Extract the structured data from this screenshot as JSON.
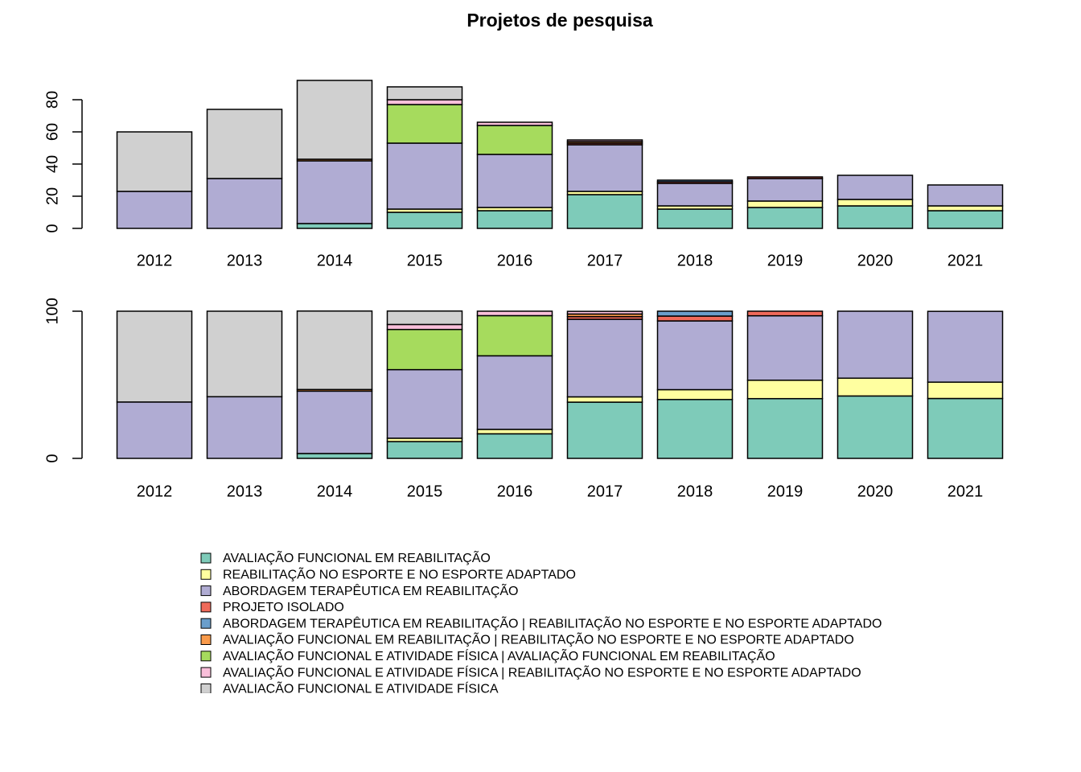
{
  "title": "Projetos de pesquisa",
  "chart_data": [
    {
      "type": "bar",
      "stacked": true,
      "categories": [
        "2012",
        "2013",
        "2014",
        "2015",
        "2016",
        "2017",
        "2018",
        "2019",
        "2020",
        "2021"
      ],
      "ylim": [
        0,
        96
      ],
      "yticks": [
        0,
        20,
        40,
        60,
        80
      ],
      "series": [
        {
          "name": "AVALIAÇÃO FUNCIONAL EM REABILITAÇÃO",
          "color": "#7ecbb9",
          "values": [
            0,
            0,
            3,
            10,
            11,
            21,
            12,
            13,
            14,
            11
          ]
        },
        {
          "name": "REABILITAÇÃO NO ESPORTE E NO ESPORTE ADAPTADO",
          "color": "#ffffa0",
          "values": [
            0,
            0,
            0,
            2,
            2,
            2,
            2,
            4,
            4,
            3
          ]
        },
        {
          "name": "ABORDAGEM TERAPÊUTICA EM REABILITAÇÃO",
          "color": "#b0acd3",
          "values": [
            23,
            31,
            39,
            41,
            33,
            29,
            14,
            14,
            15,
            13
          ]
        },
        {
          "name": "PROJETO ISOLADO",
          "color": "#ef6a5a",
          "values": [
            0,
            0,
            0,
            0,
            0,
            1,
            1,
            1,
            0,
            0
          ]
        },
        {
          "name": "ABORDAGEM TERAPÊUTICA EM REABILITAÇÃO | REABILITAÇÃO NO ESPORTE E NO ESPORTE ADAPTADO",
          "color": "#6a9ecb",
          "values": [
            0,
            0,
            0,
            0,
            0,
            0,
            1,
            0,
            0,
            0
          ]
        },
        {
          "name": "AVALIAÇÃO FUNCIONAL EM REABILITAÇÃO | REABILITAÇÃO NO ESPORTE E NO ESPORTE ADAPTADO",
          "color": "#f99a4a",
          "values": [
            0,
            0,
            1,
            0,
            0,
            1,
            0,
            0,
            0,
            0
          ]
        },
        {
          "name": "AVALIAÇÃO FUNCIONAL E ATIVIDADE FÍSICA | AVALIAÇÃO FUNCIONAL EM REABILITAÇÃO",
          "color": "#a6db5d",
          "values": [
            0,
            0,
            0,
            24,
            18,
            0,
            0,
            0,
            0,
            0
          ]
        },
        {
          "name": "AVALIAÇÃO FUNCIONAL E ATIVIDADE FÍSICA | REABILITAÇÃO NO ESPORTE E NO ESPORTE ADAPTADO",
          "color": "#f9bfda",
          "values": [
            0,
            0,
            0,
            3,
            2,
            1,
            0,
            0,
            0,
            0
          ]
        },
        {
          "name": "AVALIAÇÃO FUNCIONAL E ATIVIDADE FÍSICA",
          "color": "#d0d0d0",
          "values": [
            37,
            43,
            49,
            8,
            0,
            0,
            0,
            0,
            0,
            0
          ]
        }
      ]
    },
    {
      "type": "bar",
      "stacked": true,
      "categories": [
        "2012",
        "2013",
        "2014",
        "2015",
        "2016",
        "2017",
        "2018",
        "2019",
        "2020",
        "2021"
      ],
      "ylim": [
        0,
        103
      ],
      "yticks": [
        0,
        100
      ],
      "series": [
        {
          "color": "#7ecbb9",
          "values": [
            0,
            0,
            3.3,
            11.4,
            16.7,
            38.2,
            40,
            40.6,
            42.4,
            40.7
          ]
        },
        {
          "color": "#ffffa0",
          "values": [
            0,
            0,
            0,
            2.3,
            3.0,
            3.6,
            6.7,
            12.5,
            12.1,
            11.1
          ]
        },
        {
          "color": "#b0acd3",
          "values": [
            38.3,
            41.9,
            42.4,
            46.6,
            50.0,
            52.7,
            46.7,
            43.8,
            45.5,
            48.1
          ]
        },
        {
          "color": "#ef6a5a",
          "values": [
            0,
            0,
            0,
            0,
            0,
            1.8,
            3.3,
            3.1,
            0,
            0
          ]
        },
        {
          "color": "#6a9ecb",
          "values": [
            0,
            0,
            0,
            0,
            0,
            0,
            3.3,
            0,
            0,
            0
          ]
        },
        {
          "color": "#f99a4a",
          "values": [
            0,
            0,
            1.1,
            0,
            0,
            1.8,
            0,
            0,
            0,
            0
          ]
        },
        {
          "color": "#a6db5d",
          "values": [
            0,
            0,
            0,
            27.3,
            27.3,
            0,
            0,
            0,
            0,
            0
          ]
        },
        {
          "color": "#f9bfda",
          "values": [
            0,
            0,
            0,
            3.4,
            3.0,
            1.8,
            0,
            0,
            0,
            0
          ]
        },
        {
          "color": "#d0d0d0",
          "values": [
            61.7,
            58.1,
            53.3,
            9.1,
            0,
            0,
            0,
            0,
            0,
            0
          ]
        }
      ]
    }
  ]
}
